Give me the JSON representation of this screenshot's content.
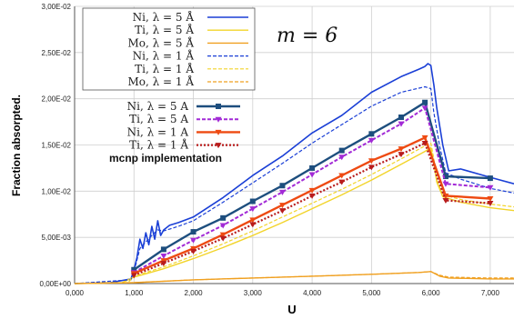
{
  "chart_data": {
    "type": "line",
    "xlabel": "U",
    "ylabel": "Fraction absorpted.",
    "annotation": "m = 6",
    "xlim": [
      0,
      7.4
    ],
    "ylim": [
      0,
      0.03
    ],
    "x_ticks": [
      0,
      1,
      2,
      3,
      4,
      5,
      6,
      7
    ],
    "x_tick_labels": [
      "0,000",
      "1,000",
      "2,000",
      "3,000",
      "4,000",
      "5,000",
      "6,000",
      "7,000"
    ],
    "y_ticks": [
      0,
      0.005,
      0.01,
      0.015,
      0.02,
      0.025,
      0.03
    ],
    "y_tick_labels": [
      "0,00E+00",
      "5,00E-03",
      "1,00E-02",
      "1,50E-02",
      "2,00E-02",
      "2,50E-02",
      "3,00E-02"
    ],
    "grid": true,
    "legend_title_group2": "mcnp implementation",
    "series": [
      {
        "name": "Ni, λ = 5 Å",
        "color": "#1a3fd6",
        "style": "solid",
        "width": 1.6,
        "x": [
          0,
          0.6,
          0.95,
          1.0,
          1.05,
          1.1,
          1.15,
          1.2,
          1.25,
          1.3,
          1.35,
          1.4,
          1.45,
          1.5,
          1.6,
          1.75,
          2,
          2.5,
          3,
          3.5,
          4,
          4.5,
          5,
          5.5,
          5.8,
          5.9,
          5.95,
          6.0,
          6.05,
          6.1,
          6.2,
          6.3,
          6.5,
          7,
          7.4
        ],
        "y": [
          0,
          0.0001,
          0.0005,
          0.0015,
          0.0028,
          0.0048,
          0.0038,
          0.0055,
          0.0042,
          0.0062,
          0.0048,
          0.0068,
          0.0052,
          0.0058,
          0.0063,
          0.0066,
          0.0072,
          0.0093,
          0.0117,
          0.0138,
          0.0163,
          0.0182,
          0.0207,
          0.0224,
          0.0232,
          0.0235,
          0.0238,
          0.0236,
          0.0215,
          0.019,
          0.015,
          0.0122,
          0.0124,
          0.0115,
          0.0108
        ]
      },
      {
        "name": "Ti, λ = 5 Å",
        "color": "#f2d42a",
        "style": "solid",
        "width": 1.4,
        "x": [
          0,
          0.8,
          1.0,
          1.5,
          2,
          2.5,
          3,
          3.5,
          4,
          4.5,
          5,
          5.5,
          5.9,
          6.0,
          6.05,
          6.1,
          6.2,
          6.5,
          7,
          7.4
        ],
        "y": [
          0,
          0.0001,
          0.0007,
          0.0016,
          0.0027,
          0.0039,
          0.0052,
          0.0066,
          0.0081,
          0.0096,
          0.0112,
          0.0129,
          0.0143,
          0.0147,
          0.013,
          0.011,
          0.0094,
          0.0088,
          0.0082,
          0.0079
        ]
      },
      {
        "name": "Mo, λ = 5 Å",
        "color": "#f0a020",
        "style": "solid",
        "width": 1.4,
        "x": [
          0,
          1,
          2,
          3,
          4,
          5,
          5.8,
          6.0,
          6.15,
          6.3,
          7,
          7.4
        ],
        "y": [
          0,
          0.0001,
          0.0004,
          0.0006,
          0.0008,
          0.001,
          0.0012,
          0.0013,
          0.0008,
          0.0006,
          0.0005,
          0.0005
        ]
      },
      {
        "name": "Ni, λ = 1 Å",
        "color": "#1a3fd6",
        "style": "dashed",
        "width": 1.2,
        "x": [
          0,
          0.95,
          1.0,
          1.1,
          1.2,
          1.3,
          1.4,
          1.5,
          1.75,
          2,
          2.5,
          3,
          3.5,
          4,
          4.5,
          5,
          5.5,
          5.9,
          6.0,
          6.05,
          6.15,
          6.25,
          6.5,
          7,
          7.4
        ],
        "y": [
          0,
          0.0004,
          0.0013,
          0.0038,
          0.0045,
          0.0052,
          0.0058,
          0.0057,
          0.0062,
          0.0068,
          0.0088,
          0.0109,
          0.013,
          0.0152,
          0.0172,
          0.0192,
          0.0207,
          0.0213,
          0.0211,
          0.0185,
          0.0148,
          0.012,
          0.0113,
          0.0103,
          0.0098
        ]
      },
      {
        "name": "Ti, λ = 1 Å",
        "color": "#f2d42a",
        "style": "dashed",
        "width": 1.2,
        "x": [
          0,
          0.9,
          1.0,
          1.5,
          2,
          2.5,
          3,
          3.5,
          4,
          4.5,
          5,
          5.5,
          5.9,
          6.0,
          6.05,
          6.1,
          6.2,
          6.5,
          7,
          7.4
        ],
        "y": [
          0,
          0.0001,
          0.0008,
          0.0018,
          0.003,
          0.0043,
          0.0057,
          0.0072,
          0.0087,
          0.0102,
          0.0118,
          0.0135,
          0.0149,
          0.0152,
          0.0135,
          0.0112,
          0.0096,
          0.0091,
          0.0086,
          0.0083
        ]
      },
      {
        "name": "Mo, λ = 1 Å",
        "color": "#f0a020",
        "style": "dashed",
        "width": 1.2,
        "x": [
          0,
          1,
          2,
          3,
          4,
          5,
          5.8,
          6.0,
          6.15,
          6.3,
          7,
          7.4
        ],
        "y": [
          0,
          0.0001,
          0.0004,
          0.0006,
          0.0008,
          0.001,
          0.0012,
          0.0013,
          0.0009,
          0.0007,
          0.0006,
          0.0006
        ]
      },
      {
        "name": "Ni, λ = 5 A",
        "color": "#1d4e7e",
        "style": "solid",
        "width": 2.4,
        "marker": "square",
        "x": [
          1.0,
          1.5,
          2.0,
          2.5,
          3.0,
          3.5,
          4.0,
          4.5,
          5.0,
          5.5,
          5.9,
          6.25,
          7.0
        ],
        "y": [
          0.0015,
          0.0037,
          0.0056,
          0.0071,
          0.0089,
          0.0106,
          0.0125,
          0.0144,
          0.0162,
          0.018,
          0.0196,
          0.0116,
          0.0114
        ]
      },
      {
        "name": "Ti, λ = 5 A",
        "color": "#a22ad6",
        "style": "dashed",
        "width": 2.0,
        "marker": "triangle",
        "x": [
          1.0,
          1.5,
          2.0,
          2.5,
          3.0,
          3.5,
          4.0,
          4.5,
          5.0,
          5.5,
          5.9,
          6.25,
          7.0
        ],
        "y": [
          0.0012,
          0.003,
          0.0047,
          0.0063,
          0.0081,
          0.0099,
          0.0118,
          0.0137,
          0.0155,
          0.0173,
          0.019,
          0.0108,
          0.0104
        ]
      },
      {
        "name": "Ni, λ = 1 A",
        "color": "#ee4a12",
        "style": "solid",
        "width": 2.4,
        "marker": "triangle",
        "x": [
          1.0,
          1.5,
          2.0,
          2.5,
          3.0,
          3.5,
          4.0,
          4.5,
          5.0,
          5.5,
          5.9,
          6.25,
          7.0
        ],
        "y": [
          0.0011,
          0.0025,
          0.0038,
          0.0053,
          0.0069,
          0.0085,
          0.0101,
          0.0117,
          0.0133,
          0.0146,
          0.0158,
          0.0095,
          0.0092
        ]
      },
      {
        "name": "Ti, λ = 1 Å",
        "color": "#b81c1c",
        "style": "dotted",
        "width": 2.2,
        "marker": "triangle",
        "x": [
          1.0,
          1.5,
          2.0,
          2.5,
          3.0,
          3.5,
          4.0,
          4.5,
          5.0,
          5.5,
          5.9,
          6.25,
          7.0
        ],
        "y": [
          0.0009,
          0.0022,
          0.0035,
          0.0049,
          0.0064,
          0.0079,
          0.0095,
          0.011,
          0.0126,
          0.014,
          0.0152,
          0.009,
          0.0087
        ]
      }
    ]
  }
}
